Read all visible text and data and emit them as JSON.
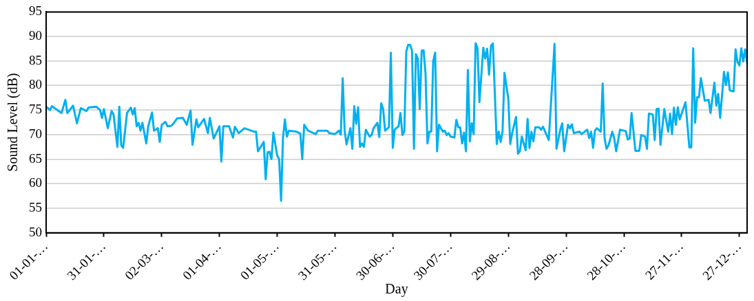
{
  "chart_data": {
    "type": "line",
    "xlabel": "Day",
    "ylabel": "Sound Level (dB)",
    "xlim": [
      "--01-01",
      "--12-31"
    ],
    "ylim": [
      50,
      95
    ],
    "xticks": [
      {
        "value": "--01-01",
        "label": "01-01-…"
      },
      {
        "value": "--01-31",
        "label": "31-01-…"
      },
      {
        "value": "--03-02",
        "label": "02-03-…"
      },
      {
        "value": "--04-01",
        "label": "01-04-…"
      },
      {
        "value": "--05-01",
        "label": "01-05-…"
      },
      {
        "value": "--05-31",
        "label": "31-05-…"
      },
      {
        "value": "--06-30",
        "label": "30-06-…"
      },
      {
        "value": "--07-30",
        "label": "30-07-…"
      },
      {
        "value": "--08-29",
        "label": "29-08-…"
      },
      {
        "value": "--09-28",
        "label": "28-09-…"
      },
      {
        "value": "--10-28",
        "label": "28-10-…"
      },
      {
        "value": "--11-27",
        "label": "27-11-…"
      },
      {
        "value": "--12-27",
        "label": "27-12-…"
      }
    ],
    "yticks": [
      50,
      55,
      60,
      65,
      70,
      75,
      80,
      85,
      90,
      95
    ],
    "grid": "y",
    "legend": false,
    "marker": "none",
    "line_style": "solid",
    "series": [
      {
        "color": "#00b0f0",
        "x": [
          "--01-01",
          "--01-03",
          "--01-04",
          "--01-09",
          "--01-11",
          "--01-12",
          "--01-15",
          "--01-17",
          "--01-19",
          "--01-22",
          "--01-23",
          "--01-27",
          "--01-29",
          "--01-30",
          "--01-31",
          "--02-02",
          "--02-04",
          "--02-05",
          "--02-07",
          "--02-08",
          "--02-09",
          "--02-10",
          "--02-12",
          "--02-14",
          "--02-15",
          "--02-16",
          "--02-17",
          "--02-18",
          "--02-19",
          "--02-20",
          "--02-22",
          "--02-23",
          "--02-25",
          "--02-26",
          "--02-28",
          "--03-01",
          "--03-02",
          "--03-04",
          "--03-05",
          "--03-07",
          "--03-08",
          "--03-10",
          "--03-13",
          "--03-15",
          "--03-17",
          "--03-18",
          "--03-20",
          "--03-21",
          "--03-24",
          "--03-26",
          "--03-27",
          "--03-29",
          "--04-01",
          "--04-02",
          "--04-03",
          "--04-06",
          "--04-08",
          "--04-09",
          "--04-11",
          "--04-14",
          "--04-19",
          "--04-20",
          "--04-21",
          "--04-24",
          "--04-25",
          "--04-26",
          "--04-27",
          "--04-28",
          "--04-29",
          "--05-01",
          "--05-02",
          "--05-03",
          "--05-04",
          "--05-05",
          "--05-06",
          "--05-07",
          "--05-11",
          "--05-13",
          "--05-14",
          "--05-15",
          "--05-17",
          "--05-21",
          "--05-22",
          "--05-27",
          "--05-28",
          "--05-31",
          "--06-02",
          "--06-03",
          "--06-04",
          "--06-05",
          "--06-06",
          "--06-08",
          "--06-09",
          "--06-10",
          "--06-11",
          "--06-12",
          "--06-13",
          "--06-14",
          "--06-15",
          "--06-16",
          "--06-18",
          "--06-19",
          "--06-20",
          "--06-22",
          "--06-23",
          "--06-24",
          "--06-25",
          "--06-26",
          "--06-28",
          "--06-29",
          "--06-30",
          "--07-01",
          "--07-03",
          "--07-04",
          "--07-05",
          "--07-06",
          "--07-07",
          "--07-08",
          "--07-09",
          "--07-10",
          "--07-11",
          "--07-12",
          "--07-13",
          "--07-14",
          "--07-15",
          "--07-16",
          "--07-17",
          "--07-18",
          "--07-19",
          "--07-20",
          "--07-21",
          "--07-22",
          "--07-23",
          "--07-24",
          "--07-26",
          "--07-27",
          "--07-28",
          "--07-29",
          "--07-30",
          "--08-01",
          "--08-02",
          "--08-03",
          "--08-04",
          "--08-05",
          "--08-06",
          "--08-07",
          "--08-08",
          "--08-09",
          "--08-10",
          "--08-11",
          "--08-12",
          "--08-13",
          "--08-14",
          "--08-16",
          "--08-17",
          "--08-18",
          "--08-19",
          "--08-20",
          "--08-21",
          "--08-23",
          "--08-24",
          "--08-25",
          "--08-26",
          "--08-27",
          "--08-29",
          "--08-30",
          "--08-31",
          "--09-02",
          "--09-03",
          "--09-04",
          "--09-05",
          "--09-07",
          "--09-08",
          "--09-09",
          "--09-10",
          "--09-11",
          "--09-12",
          "--09-14",
          "--09-15",
          "--09-16",
          "--09-19",
          "--09-22",
          "--09-23",
          "--09-25",
          "--09-26",
          "--09-27",
          "--09-29",
          "--09-30",
          "--10-01",
          "--10-02",
          "--10-05",
          "--10-06",
          "--10-09",
          "--10-10",
          "--10-11",
          "--10-12",
          "--10-13",
          "--10-14",
          "--10-16",
          "--10-17",
          "--10-18",
          "--10-19",
          "--10-20",
          "--10-22",
          "--10-23",
          "--10-24",
          "--10-26",
          "--10-29",
          "--10-30",
          "--10-31",
          "--11-01",
          "--11-03",
          "--11-05",
          "--11-06",
          "--11-08",
          "--11-09",
          "--11-10",
          "--11-12",
          "--11-13",
          "--11-14",
          "--11-15",
          "--11-16",
          "--11-18",
          "--11-20",
          "--11-21",
          "--11-22",
          "--11-23",
          "--11-24",
          "--11-25",
          "--11-26",
          "--11-29",
          "--12-01",
          "--12-02",
          "--12-03",
          "--12-04",
          "--12-05",
          "--12-06",
          "--12-07",
          "--12-09",
          "--12-11",
          "--12-12",
          "--12-14",
          "--12-15",
          "--12-16",
          "--12-17",
          "--12-19",
          "--12-20",
          "--12-21",
          "--12-22",
          "--12-24",
          "--12-25",
          "--12-26",
          "--12-27",
          "--12-28",
          "--12-29",
          "--12-30",
          "--12-31"
        ],
        "values": [
          75.7,
          75.0,
          75.8,
          74.4,
          77.1,
          74.4,
          75.9,
          72.3,
          75.4,
          74.8,
          75.5,
          75.7,
          75.0,
          73.4,
          75.2,
          71.3,
          74.8,
          74.1,
          67.5,
          75.7,
          67.8,
          67.3,
          74.4,
          75.5,
          74.1,
          75.4,
          71.7,
          72.4,
          70.8,
          72.4,
          68.2,
          71.7,
          74.5,
          70.8,
          71.3,
          68.5,
          72.0,
          72.6,
          71.7,
          71.8,
          72.2,
          73.3,
          73.4,
          72.0,
          74.9,
          67.9,
          73.1,
          71.5,
          73.2,
          70.3,
          73.4,
          69.2,
          71.7,
          64.5,
          71.7,
          71.7,
          69.4,
          71.6,
          70.3,
          71.3,
          70.6,
          70.6,
          66.6,
          68.5,
          60.9,
          66.4,
          66.5,
          65.0,
          70.4,
          65.7,
          65.0,
          56.5,
          69.4,
          73.1,
          69.6,
          70.8,
          70.6,
          70.2,
          65.0,
          72.0,
          70.8,
          70.1,
          70.8,
          70.8,
          70.3,
          70.1,
          70.8,
          70.0,
          81.5,
          70.8,
          68.0,
          71.3,
          67.1,
          75.8,
          72.2,
          75.6,
          67.5,
          68.2,
          67.5,
          71.0,
          69.6,
          69.9,
          71.3,
          72.4,
          69.5,
          76.4,
          75.2,
          70.8,
          71.5,
          86.7,
          67.3,
          71.0,
          71.7,
          74.4,
          69.9,
          70.6,
          86.9,
          88.3,
          88.3,
          87.1,
          67.1,
          86.4,
          85.5,
          75.2,
          87.1,
          87.2,
          82.5,
          68.2,
          70.6,
          70.6,
          85.0,
          86.7,
          66.6,
          72.0,
          70.6,
          70.8,
          69.9,
          70.3,
          69.6,
          69.4,
          73.0,
          71.5,
          71.5,
          68.2,
          70.4,
          66.6,
          83.2,
          68.6,
          72.3,
          70.1,
          88.6,
          87.7,
          76.6,
          87.7,
          85.5,
          87.5,
          82.2,
          88.1,
          88.6,
          68.1,
          70.6,
          68.5,
          70.6,
          82.6,
          77.3,
          68.1,
          70.3,
          73.6,
          66.1,
          66.6,
          69.6,
          66.8,
          73.2,
          67.3,
          70.6,
          68.6,
          71.5,
          71.5,
          71.0,
          71.6,
          68.9,
          88.5,
          67.1,
          71.0,
          72.3,
          66.6,
          72.0,
          71.3,
          72.1,
          70.3,
          70.6,
          70.1,
          71.0,
          69.3,
          70.6,
          67.3,
          70.8,
          71.3,
          70.6,
          80.4,
          69.2,
          67.1,
          67.8,
          70.6,
          69.2,
          66.6,
          71.0,
          70.7,
          69.0,
          69.2,
          74.4,
          66.7,
          66.7,
          69.9,
          69.6,
          67.1,
          74.3,
          74.1,
          68.9,
          75.2,
          75.3,
          67.9,
          75.2,
          70.6,
          74.3,
          70.1,
          75.5,
          72.0,
          75.6,
          73.1,
          76.6,
          67.4,
          67.4,
          87.6,
          72.4,
          77.6,
          77.6,
          81.5,
          76.9,
          77.1,
          74.4,
          80.6,
          75.9,
          78.3,
          73.4,
          82.8,
          80.1,
          82.7,
          79.0,
          78.8,
          87.4,
          84.8,
          84.1,
          87.6,
          84.9,
          87.4,
          84.6
        ]
      }
    ]
  }
}
